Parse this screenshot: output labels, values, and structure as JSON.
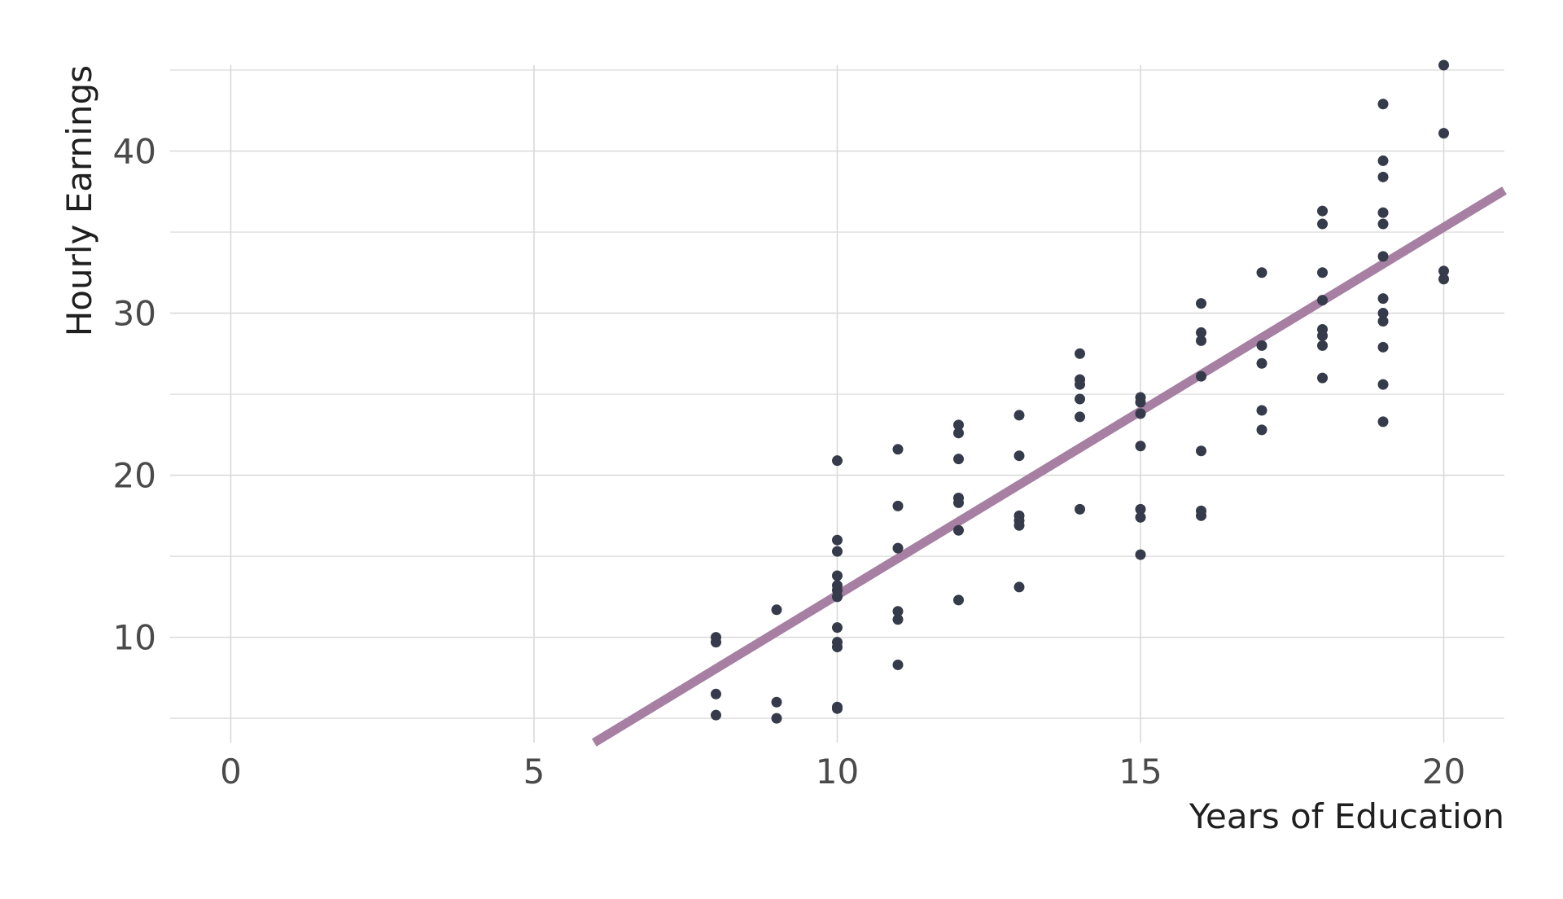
{
  "chart_data": {
    "type": "scatter",
    "title": "",
    "xlabel": "Years of Education",
    "ylabel": "Hourly Earnings",
    "xlim": [
      -1,
      21
    ],
    "ylim": [
      3.5,
      45.3
    ],
    "x_ticks": [
      0,
      5,
      10,
      15,
      20
    ],
    "y_ticks": [
      10,
      20,
      30,
      40
    ],
    "grid": true,
    "point_color": "#353b4b",
    "fit_line_color": "#a67fa3",
    "points": [
      [
        8,
        10.0
      ],
      [
        8,
        9.7
      ],
      [
        8,
        6.5
      ],
      [
        8,
        5.2
      ],
      [
        9,
        11.7
      ],
      [
        9,
        6.0
      ],
      [
        9,
        5.0
      ],
      [
        10,
        20.9
      ],
      [
        10,
        16.0
      ],
      [
        10,
        15.3
      ],
      [
        10,
        13.8
      ],
      [
        10,
        13.2
      ],
      [
        10,
        12.9
      ],
      [
        10,
        12.5
      ],
      [
        10,
        10.6
      ],
      [
        10,
        9.7
      ],
      [
        10,
        9.4
      ],
      [
        10,
        5.7
      ],
      [
        10,
        5.6
      ],
      [
        11,
        21.6
      ],
      [
        11,
        18.1
      ],
      [
        11,
        15.5
      ],
      [
        11,
        11.6
      ],
      [
        11,
        11.1
      ],
      [
        11,
        8.3
      ],
      [
        12,
        23.1
      ],
      [
        12,
        22.6
      ],
      [
        12,
        21.0
      ],
      [
        12,
        18.6
      ],
      [
        12,
        18.3
      ],
      [
        12,
        16.6
      ],
      [
        12,
        12.3
      ],
      [
        13,
        23.7
      ],
      [
        13,
        21.2
      ],
      [
        13,
        17.5
      ],
      [
        13,
        17.2
      ],
      [
        13,
        16.9
      ],
      [
        13,
        13.1
      ],
      [
        14,
        27.5
      ],
      [
        14,
        25.9
      ],
      [
        14,
        25.6
      ],
      [
        14,
        24.7
      ],
      [
        14,
        23.6
      ],
      [
        14,
        17.9
      ],
      [
        15,
        24.8
      ],
      [
        15,
        24.5
      ],
      [
        15,
        23.8
      ],
      [
        15,
        21.8
      ],
      [
        15,
        17.9
      ],
      [
        15,
        17.4
      ],
      [
        15,
        15.1
      ],
      [
        16,
        30.6
      ],
      [
        16,
        28.8
      ],
      [
        16,
        28.3
      ],
      [
        16,
        26.1
      ],
      [
        16,
        21.5
      ],
      [
        16,
        17.8
      ],
      [
        16,
        17.5
      ],
      [
        17,
        32.5
      ],
      [
        17,
        28.0
      ],
      [
        17,
        26.9
      ],
      [
        17,
        24.0
      ],
      [
        17,
        22.8
      ],
      [
        18,
        36.3
      ],
      [
        18,
        35.5
      ],
      [
        18,
        32.5
      ],
      [
        18,
        30.8
      ],
      [
        18,
        29.0
      ],
      [
        18,
        28.6
      ],
      [
        18,
        28.0
      ],
      [
        18,
        26.0
      ],
      [
        19,
        42.9
      ],
      [
        19,
        39.4
      ],
      [
        19,
        38.4
      ],
      [
        19,
        36.2
      ],
      [
        19,
        35.5
      ],
      [
        19,
        33.5
      ],
      [
        19,
        30.9
      ],
      [
        19,
        30.0
      ],
      [
        19,
        29.5
      ],
      [
        19,
        27.9
      ],
      [
        19,
        25.6
      ],
      [
        19,
        23.3
      ],
      [
        20,
        45.3
      ],
      [
        20,
        41.1
      ],
      [
        20,
        32.6
      ],
      [
        20,
        32.1
      ]
    ],
    "fit_line": {
      "intercept": -10.1,
      "slope": 2.27
    }
  }
}
